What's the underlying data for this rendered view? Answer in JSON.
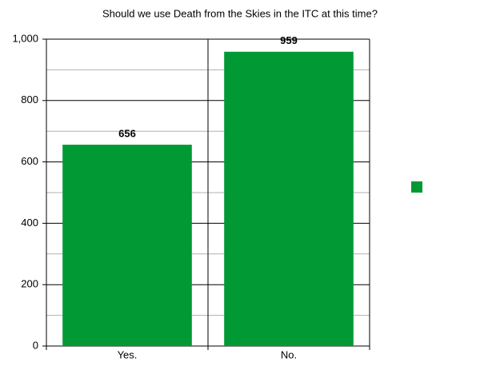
{
  "chart_data": {
    "type": "bar",
    "title": "Should we use Death from the Skies in the ITC at this time?",
    "categories": [
      "Yes.",
      "No."
    ],
    "values": [
      656,
      959
    ],
    "color": "#009933",
    "ylim": [
      0,
      1000
    ],
    "yticks": [
      0,
      200,
      400,
      600,
      800,
      {
        "value": 1000,
        "label": "1,000"
      }
    ],
    "minor_yticks": [
      100,
      300,
      500,
      700,
      900
    ],
    "grid": true,
    "legend": "right",
    "data_labels": true
  }
}
